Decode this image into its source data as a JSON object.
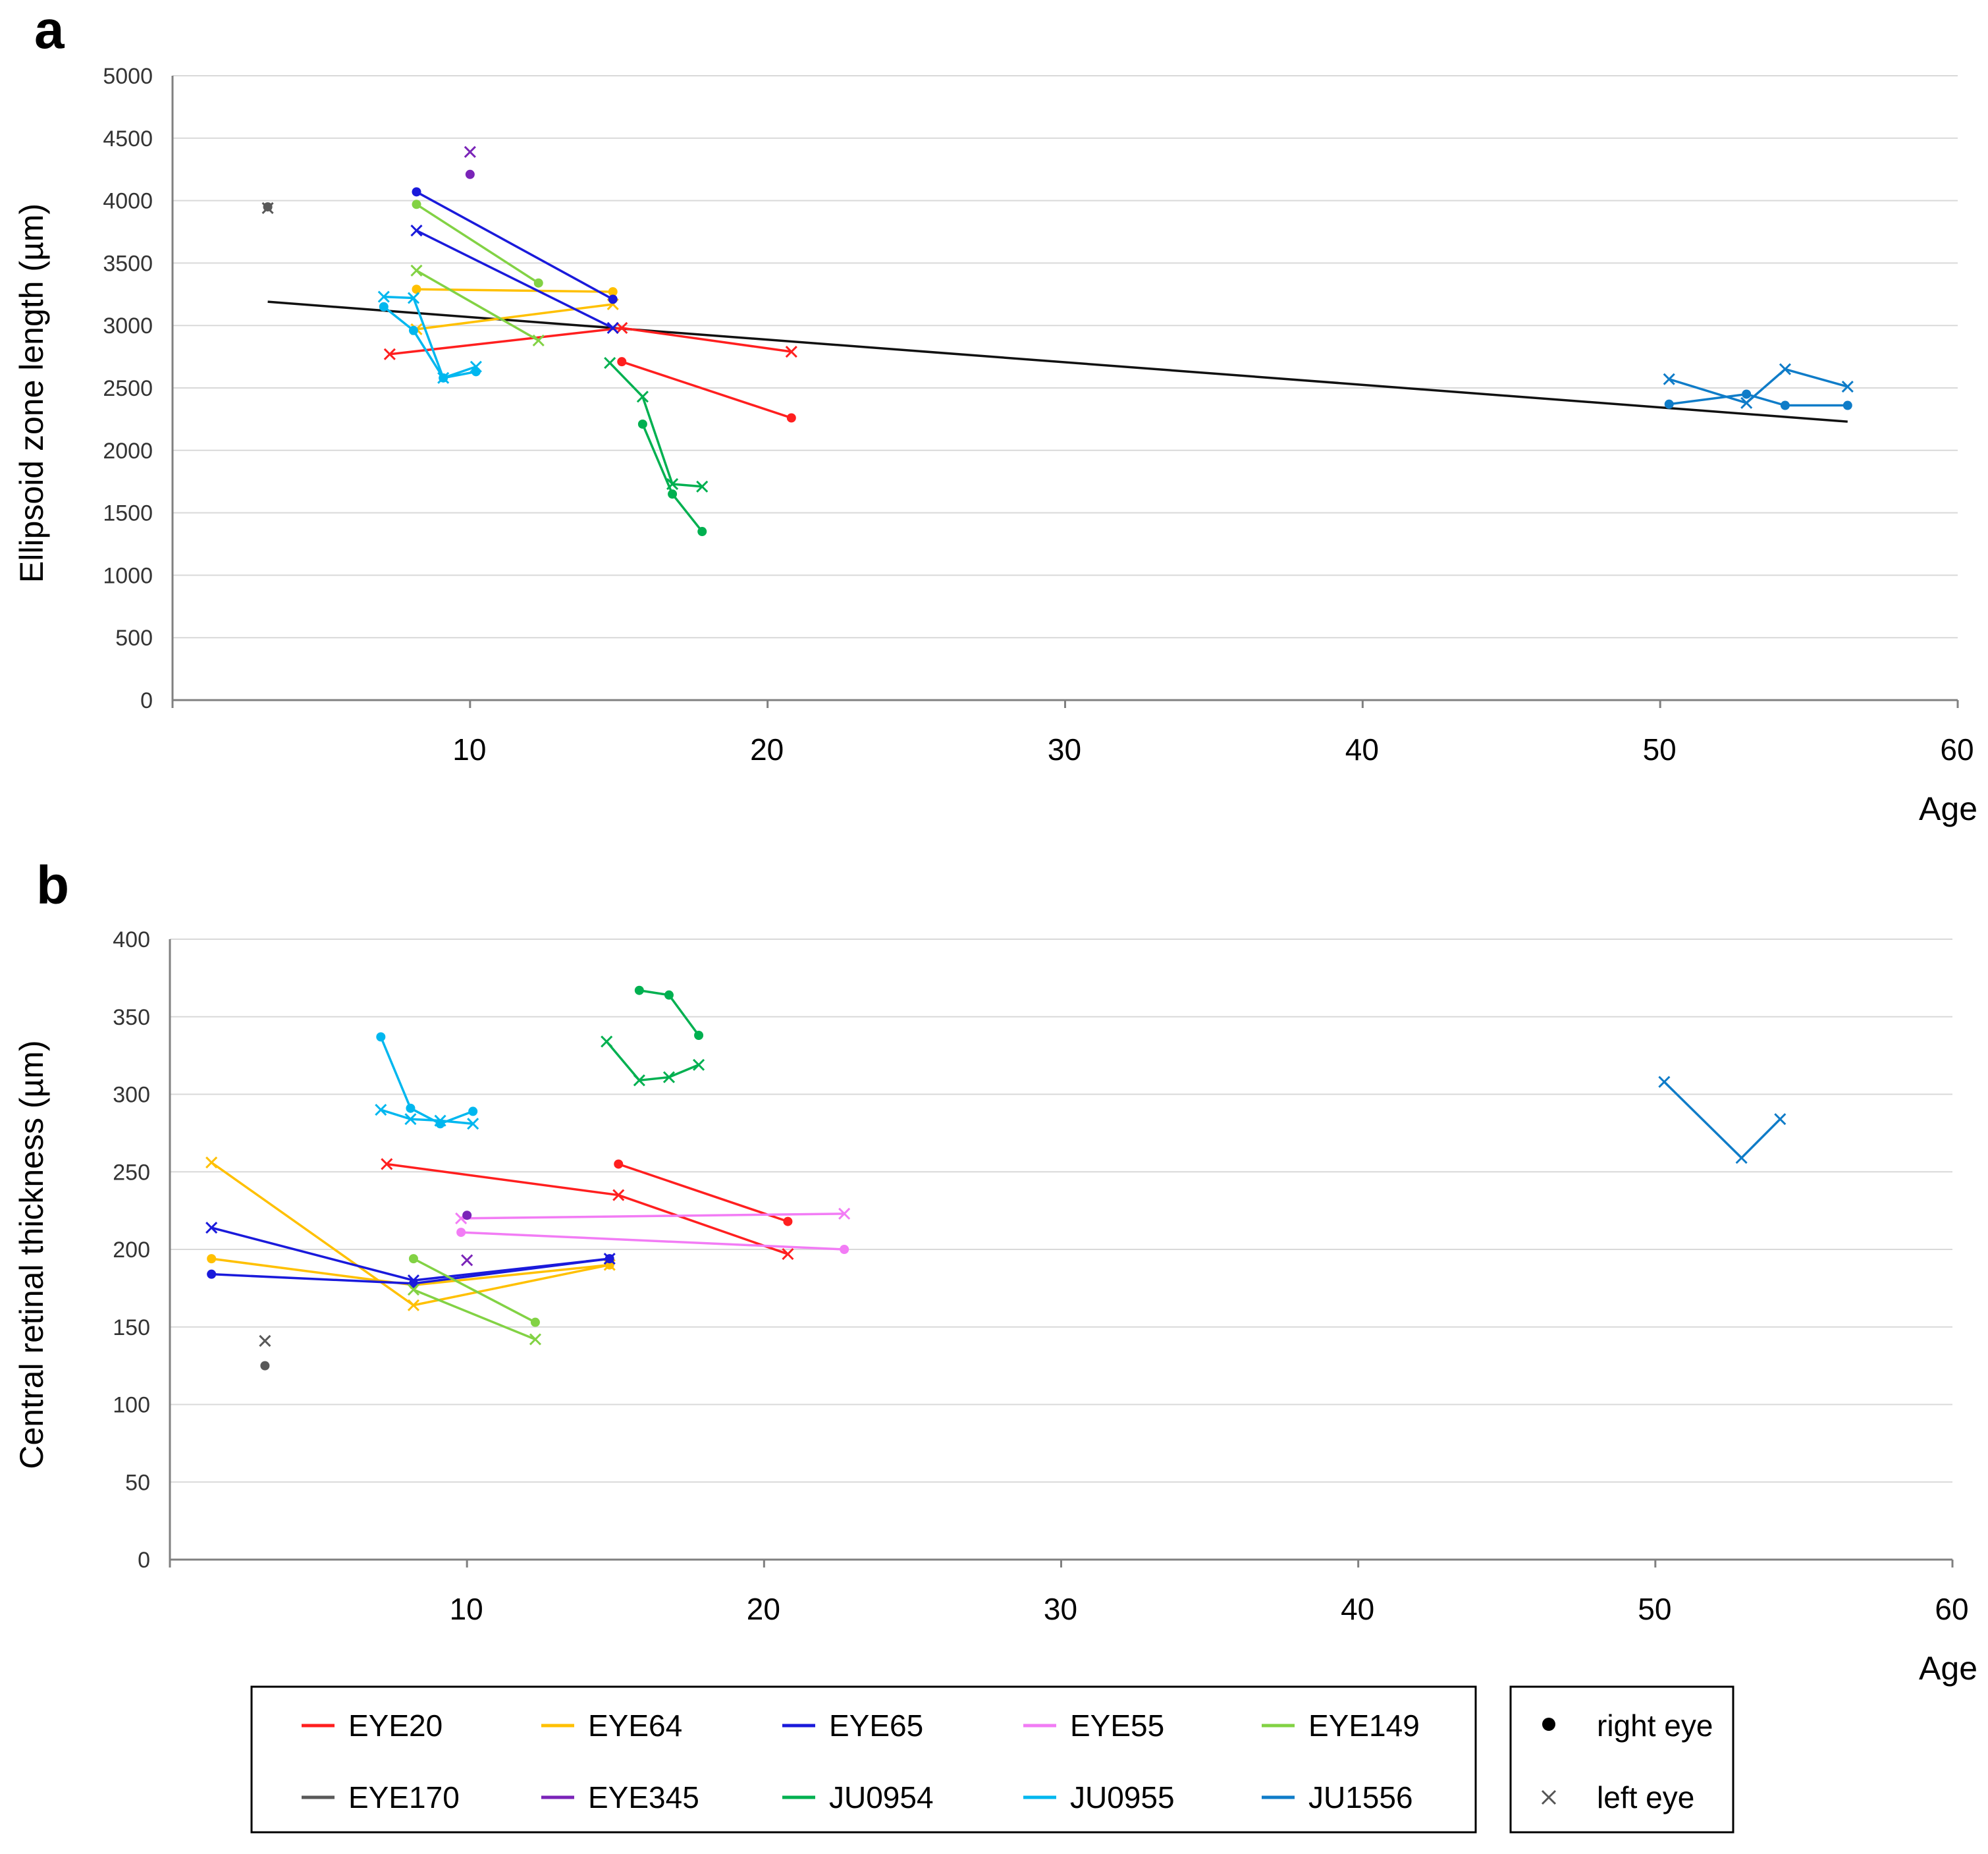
{
  "figure": {
    "legend_series_title": "",
    "marker_legend": [
      {
        "marker": "dot",
        "label": "right eye"
      },
      {
        "marker": "cross",
        "label": "left eye"
      }
    ]
  },
  "series_colors": {
    "EYE20": "#ff1f1f",
    "EYE64": "#ffc000",
    "EYE65": "#1a1adb",
    "EYE55": "#f27cf5",
    "EYE149": "#82d244",
    "EYE170": "#595959",
    "EYE345": "#7a24b8",
    "JU0954": "#00b050",
    "JU0955": "#00b7ef",
    "JU1556": "#0f7cc8"
  },
  "legend": [
    "EYE20",
    "EYE64",
    "EYE65",
    "EYE55",
    "EYE149",
    "EYE170",
    "EYE345",
    "JU0954",
    "JU0955",
    "JU1556"
  ],
  "chart_data": [
    {
      "panel": "a",
      "type": "line",
      "title": "",
      "xlabel": "Age",
      "ylabel": "Ellipsoid zone length (µm)",
      "xlim": [
        0,
        60
      ],
      "ylim": [
        0,
        5000
      ],
      "xticks": [
        10,
        20,
        30,
        40,
        50,
        60
      ],
      "yticks": [
        0,
        500,
        1000,
        1500,
        2000,
        2500,
        3000,
        3500,
        4000,
        4500,
        5000
      ],
      "grid": true,
      "trendline": {
        "x": [
          3.2,
          56.3
        ],
        "y": [
          3190,
          2230
        ]
      },
      "series": [
        {
          "name": "EYE20",
          "eye": "right",
          "x": [
            15.1,
            20.8
          ],
          "y": [
            2710,
            2260
          ]
        },
        {
          "name": "EYE20",
          "eye": "left",
          "x": [
            7.3,
            15.1,
            20.8
          ],
          "y": [
            2770,
            2980,
            2790
          ]
        },
        {
          "name": "EYE64",
          "eye": "right",
          "x": [
            8.2,
            14.8
          ],
          "y": [
            3290,
            3270
          ]
        },
        {
          "name": "EYE64",
          "eye": "left",
          "x": [
            8.2,
            14.8
          ],
          "y": [
            2970,
            3170
          ]
        },
        {
          "name": "EYE65",
          "eye": "right",
          "x": [
            8.2,
            14.8
          ],
          "y": [
            4070,
            3210
          ]
        },
        {
          "name": "EYE65",
          "eye": "left",
          "x": [
            8.2,
            14.8
          ],
          "y": [
            3760,
            2980
          ]
        },
        {
          "name": "EYE149",
          "eye": "right",
          "x": [
            8.2,
            12.3
          ],
          "y": [
            3970,
            3340
          ]
        },
        {
          "name": "EYE149",
          "eye": "left",
          "x": [
            8.2,
            12.3
          ],
          "y": [
            3440,
            2880
          ]
        },
        {
          "name": "EYE170",
          "eye": "right",
          "x": [
            3.2
          ],
          "y": [
            3950
          ]
        },
        {
          "name": "EYE170",
          "eye": "left",
          "x": [
            3.2
          ],
          "y": [
            3940
          ]
        },
        {
          "name": "EYE345",
          "eye": "right",
          "x": [
            10.0
          ],
          "y": [
            4210
          ]
        },
        {
          "name": "EYE345",
          "eye": "left",
          "x": [
            10.0
          ],
          "y": [
            4390
          ]
        },
        {
          "name": "JU0954",
          "eye": "right",
          "x": [
            15.8,
            16.8,
            17.8
          ],
          "y": [
            2210,
            1650,
            1350
          ]
        },
        {
          "name": "JU0954",
          "eye": "left",
          "x": [
            14.7,
            15.8,
            16.8,
            17.8
          ],
          "y": [
            2700,
            2430,
            1730,
            1710
          ]
        },
        {
          "name": "JU0955",
          "eye": "right",
          "x": [
            7.1,
            8.1,
            9.1,
            10.2
          ],
          "y": [
            3150,
            2960,
            2580,
            2630
          ]
        },
        {
          "name": "JU0955",
          "eye": "left",
          "x": [
            7.1,
            8.1,
            9.1,
            10.2
          ],
          "y": [
            3230,
            3220,
            2580,
            2670
          ]
        },
        {
          "name": "JU1556",
          "eye": "right",
          "x": [
            50.3,
            52.9,
            54.2,
            56.3
          ],
          "y": [
            2370,
            2450,
            2360,
            2360
          ]
        },
        {
          "name": "JU1556",
          "eye": "left",
          "x": [
            50.3,
            52.9,
            54.2,
            56.3
          ],
          "y": [
            2570,
            2380,
            2650,
            2510
          ]
        }
      ]
    },
    {
      "panel": "b",
      "type": "line",
      "title": "",
      "xlabel": "Age",
      "ylabel": "Central retinal thickness (µm)",
      "xlim": [
        0,
        60
      ],
      "ylim": [
        0,
        400
      ],
      "xticks": [
        10,
        20,
        30,
        40,
        50,
        60
      ],
      "yticks": [
        0,
        50,
        100,
        150,
        200,
        250,
        300,
        350,
        400
      ],
      "grid": true,
      "series": [
        {
          "name": "EYE20",
          "eye": "right",
          "x": [
            15.1,
            20.8
          ],
          "y": [
            255,
            218
          ]
        },
        {
          "name": "EYE20",
          "eye": "left",
          "x": [
            7.3,
            15.1,
            20.8
          ],
          "y": [
            255,
            235,
            197
          ]
        },
        {
          "name": "EYE64",
          "eye": "right",
          "x": [
            1.4,
            8.2,
            14.8
          ],
          "y": [
            194,
            177,
            190
          ]
        },
        {
          "name": "EYE64",
          "eye": "left",
          "x": [
            1.4,
            8.2,
            14.8
          ],
          "y": [
            256,
            164,
            190
          ]
        },
        {
          "name": "EYE65",
          "eye": "right",
          "x": [
            1.4,
            8.2,
            14.8
          ],
          "y": [
            184,
            178,
            194
          ]
        },
        {
          "name": "EYE65",
          "eye": "left",
          "x": [
            1.4,
            8.2,
            14.8
          ],
          "y": [
            214,
            180,
            194
          ]
        },
        {
          "name": "EYE55",
          "eye": "right",
          "x": [
            9.8,
            22.7
          ],
          "y": [
            211,
            200
          ]
        },
        {
          "name": "EYE55",
          "eye": "left",
          "x": [
            9.8,
            22.7
          ],
          "y": [
            220,
            223
          ]
        },
        {
          "name": "EYE149",
          "eye": "right",
          "x": [
            8.2,
            12.3
          ],
          "y": [
            194,
            153
          ]
        },
        {
          "name": "EYE149",
          "eye": "left",
          "x": [
            8.2,
            12.3
          ],
          "y": [
            174,
            142
          ]
        },
        {
          "name": "EYE170",
          "eye": "right",
          "x": [
            3.2
          ],
          "y": [
            125
          ]
        },
        {
          "name": "EYE170",
          "eye": "left",
          "x": [
            3.2
          ],
          "y": [
            141
          ]
        },
        {
          "name": "EYE345",
          "eye": "right",
          "x": [
            10.0
          ],
          "y": [
            222
          ]
        },
        {
          "name": "EYE345",
          "eye": "left",
          "x": [
            10.0
          ],
          "y": [
            193
          ]
        },
        {
          "name": "JU0954",
          "eye": "right",
          "x": [
            15.8,
            16.8,
            17.8
          ],
          "y": [
            367,
            364,
            338
          ]
        },
        {
          "name": "JU0954",
          "eye": "left",
          "x": [
            14.7,
            15.8,
            16.8,
            17.8
          ],
          "y": [
            334,
            309,
            311,
            319
          ]
        },
        {
          "name": "JU0955",
          "eye": "right",
          "x": [
            7.1,
            8.1,
            9.1,
            10.2
          ],
          "y": [
            337,
            291,
            281,
            289
          ]
        },
        {
          "name": "JU0955",
          "eye": "left",
          "x": [
            7.1,
            8.1,
            9.1,
            10.2
          ],
          "y": [
            290,
            284,
            283,
            281
          ]
        },
        {
          "name": "JU1556",
          "eye": "left",
          "x": [
            50.3,
            52.9,
            54.2
          ],
          "y": [
            308,
            259,
            284
          ]
        }
      ]
    }
  ],
  "panels": {
    "a": {
      "letter": "a"
    },
    "b": {
      "letter": "b"
    }
  }
}
